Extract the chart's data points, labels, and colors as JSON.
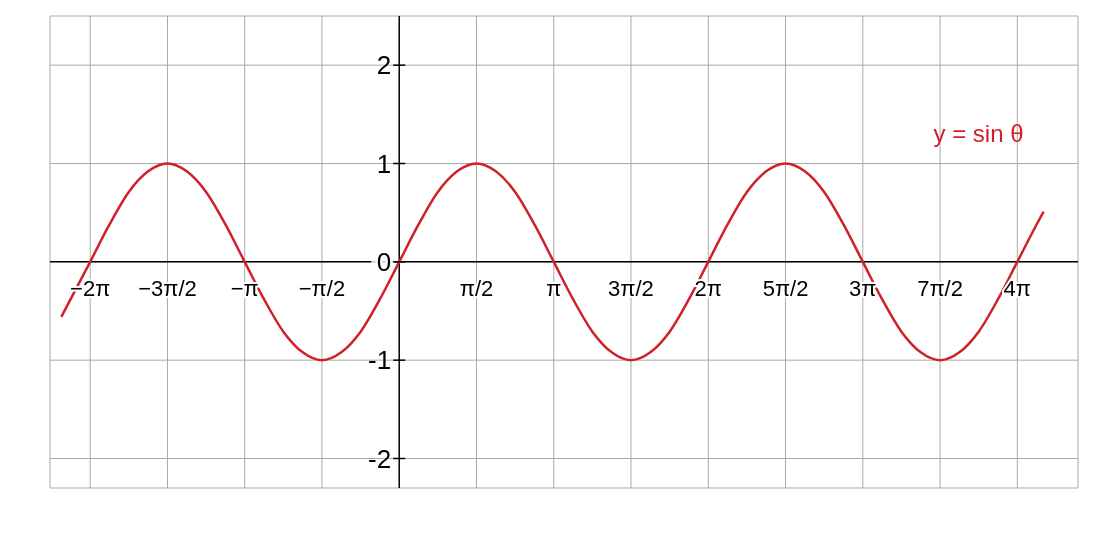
{
  "chart_data": {
    "type": "line",
    "x": [
      -6.87,
      -6.283,
      -5.89,
      -5.498,
      -5.105,
      -4.712,
      -4.32,
      -3.927,
      -3.534,
      -3.142,
      -2.749,
      -2.356,
      -1.963,
      -1.571,
      -1.178,
      -0.785,
      -0.393,
      0,
      0.393,
      0.785,
      1.178,
      1.571,
      1.963,
      2.356,
      2.749,
      3.142,
      3.534,
      3.927,
      4.32,
      4.712,
      5.105,
      5.498,
      5.89,
      6.283,
      6.676,
      7.069,
      7.461,
      7.854,
      8.247,
      8.639,
      9.032,
      9.425,
      9.817,
      10.21,
      10.603,
      10.996,
      11.388,
      11.781,
      12.174,
      12.566,
      12.959,
      13.1
    ],
    "series": [
      {
        "name": "y = sin θ",
        "color": "#d0202a",
        "values": [
          -0.56,
          0,
          0.38,
          0.71,
          0.92,
          1,
          0.92,
          0.71,
          0.38,
          0,
          -0.38,
          -0.71,
          -0.92,
          -1,
          -0.92,
          -0.71,
          -0.38,
          0,
          0.38,
          0.71,
          0.92,
          1,
          0.92,
          0.71,
          0.38,
          0,
          -0.38,
          -0.71,
          -0.92,
          -1,
          -0.92,
          -0.71,
          -0.38,
          0,
          0.38,
          0.71,
          0.92,
          1,
          0.92,
          0.71,
          0.38,
          0,
          -0.38,
          -0.71,
          -0.92,
          -1,
          -0.92,
          -0.71,
          -0.38,
          0,
          0.38,
          0.51
        ]
      }
    ],
    "xlim": [
      -7.1,
      13.8
    ],
    "ylim": [
      -2.3,
      2.5
    ],
    "xticks": [
      {
        "value": -6.283,
        "label": "−2π"
      },
      {
        "value": -4.712,
        "label": "−3π/2"
      },
      {
        "value": -3.142,
        "label": "−π"
      },
      {
        "value": -1.571,
        "label": "−π/2"
      },
      {
        "value": 1.571,
        "label": "π/2"
      },
      {
        "value": 3.142,
        "label": "π"
      },
      {
        "value": 4.712,
        "label": "3π/2"
      },
      {
        "value": 6.283,
        "label": "2π"
      },
      {
        "value": 7.854,
        "label": "5π/2"
      },
      {
        "value": 9.425,
        "label": "3π"
      },
      {
        "value": 10.996,
        "label": "7π/2"
      },
      {
        "value": 12.566,
        "label": "4π"
      }
    ],
    "yticks": [
      -2,
      -1,
      0,
      1,
      2
    ],
    "grid": true,
    "legend": false,
    "marker": "none",
    "line_style": "solid"
  }
}
